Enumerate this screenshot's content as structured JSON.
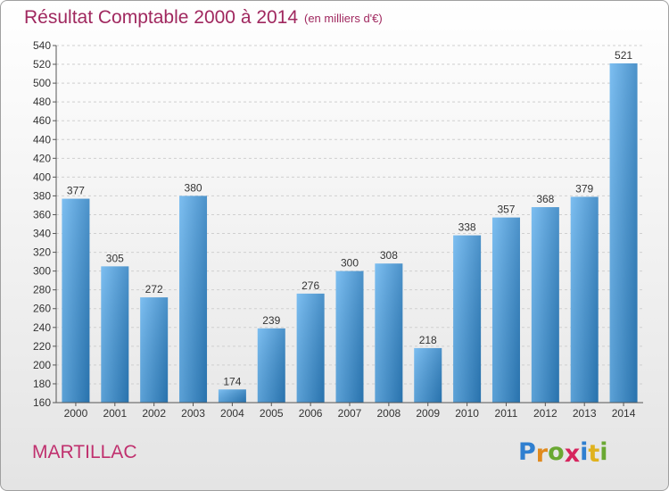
{
  "title": "Résultat Comptable 2000 à 2014",
  "subtitle": "(en milliers d'€)",
  "commune": "MARTILLAC",
  "logo": {
    "letters": [
      "P",
      "r",
      "o",
      "x",
      "i",
      "t",
      "i"
    ],
    "colors": [
      "#2f7fd0",
      "#e08a1e",
      "#6aa832",
      "#d6245d",
      "#2f7fd0",
      "#e0b21e",
      "#6aa832"
    ]
  },
  "colors": {
    "bar_light": "#66b3ee",
    "bar_dark": "#2d7fc0",
    "title": "#a0285f"
  },
  "chart_data": {
    "type": "bar",
    "categories": [
      "2000",
      "2001",
      "2002",
      "2003",
      "2004",
      "2005",
      "2006",
      "2007",
      "2008",
      "2009",
      "2010",
      "2011",
      "2012",
      "2013",
      "2014"
    ],
    "values": [
      377,
      305,
      272,
      380,
      174,
      239,
      276,
      300,
      308,
      218,
      338,
      357,
      368,
      379,
      521
    ],
    "ylim": [
      160,
      540
    ],
    "yticks": [
      160,
      180,
      200,
      220,
      240,
      260,
      280,
      300,
      320,
      340,
      360,
      380,
      400,
      420,
      440,
      460,
      480,
      500,
      520,
      540
    ],
    "grid": true,
    "legend": "none"
  }
}
